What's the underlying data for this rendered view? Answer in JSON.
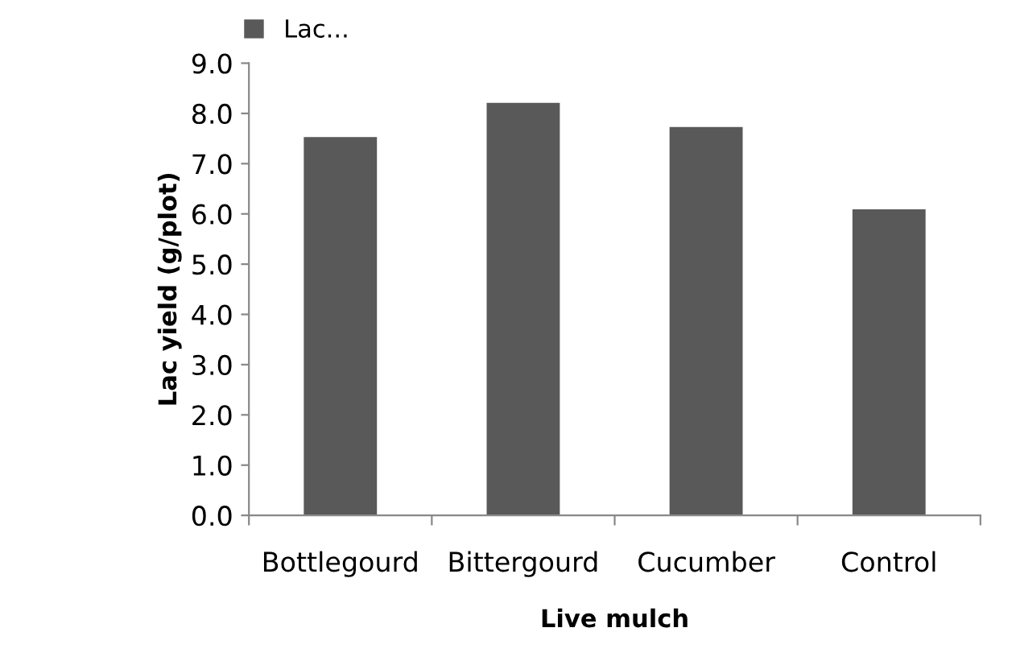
{
  "chart_data": {
    "type": "bar",
    "xlabel": "Live mulch",
    "ylabel": "Lac yield (g/plot)",
    "categories": [
      "Bottlegourd",
      "Bittergourd",
      "Cucumber",
      "Control"
    ],
    "series": [
      {
        "name": "Lac...",
        "color": "#595959",
        "values": [
          7.53,
          8.21,
          7.73,
          6.09
        ]
      }
    ],
    "ylim": [
      0,
      9
    ],
    "yticks": [
      {
        "value": 0,
        "label": "0.0"
      },
      {
        "value": 1,
        "label": "1.0"
      },
      {
        "value": 2,
        "label": "2.0"
      },
      {
        "value": 3,
        "label": "3.0"
      },
      {
        "value": 4,
        "label": "4.0"
      },
      {
        "value": 5,
        "label": "5.0"
      },
      {
        "value": 6,
        "label": "6.0"
      },
      {
        "value": 7,
        "label": "7.0"
      },
      {
        "value": 8,
        "label": "8.0"
      },
      {
        "value": 9,
        "label": "9.0"
      }
    ],
    "grid": false,
    "legend": "top left"
  }
}
